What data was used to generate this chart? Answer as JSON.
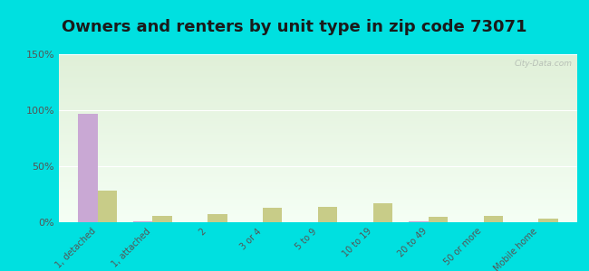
{
  "title": "Owners and renters by unit type in zip code 73071",
  "categories": [
    "1, detached",
    "1, attached",
    "2",
    "3 or 4",
    "5 to 9",
    "10 to 19",
    "20 to 49",
    "50 or more",
    "Mobile home"
  ],
  "owner_values": [
    97,
    1,
    0,
    0,
    0,
    0,
    1,
    0,
    0
  ],
  "renter_values": [
    28,
    6,
    7,
    13,
    14,
    17,
    5,
    6,
    3
  ],
  "owner_color": "#c9a8d4",
  "renter_color": "#c8cc88",
  "background_color": "#00e0e0",
  "plot_bg_top": "#e0f0d8",
  "plot_bg_bottom": "#f5fff5",
  "ylim": [
    0,
    150
  ],
  "yticks": [
    0,
    50,
    100,
    150
  ],
  "ytick_labels": [
    "0%",
    "50%",
    "100%",
    "150%"
  ],
  "title_fontsize": 13,
  "watermark": "City-Data.com",
  "tick_color": "#555555",
  "label_fontsize": 7
}
